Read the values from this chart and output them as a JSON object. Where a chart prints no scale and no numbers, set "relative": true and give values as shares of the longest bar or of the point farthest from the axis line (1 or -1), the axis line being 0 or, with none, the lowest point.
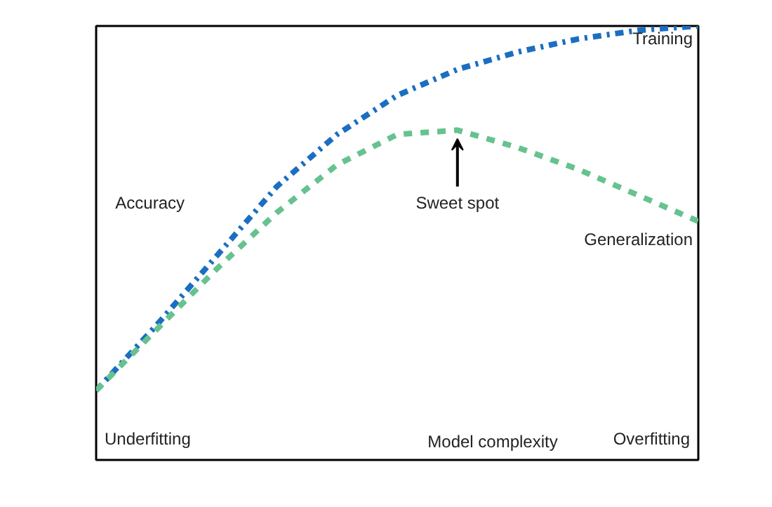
{
  "chart_data": {
    "type": "line",
    "relative": true,
    "xlabel": "Model complexity",
    "ylabel": "Accuracy",
    "categories": [
      null,
      null,
      null,
      null,
      null,
      null,
      null,
      null,
      null,
      null,
      null
    ],
    "series": [
      {
        "name": "Training",
        "color": "#1b6ec2",
        "line_style": "dashdot",
        "values": [
          0.16,
          0.31,
          0.47,
          0.63,
          0.75,
          0.84,
          0.9,
          0.94,
          0.97,
          0.99,
          1.0
        ]
      },
      {
        "name": "Generalization",
        "color": "#66c28f",
        "line_style": "dashed",
        "values": [
          0.16,
          0.3,
          0.44,
          0.57,
          0.68,
          0.75,
          0.76,
          0.72,
          0.67,
          0.61,
          0.55
        ]
      }
    ],
    "annotations": [
      "Sweet spot",
      "Underfitting",
      "Overfitting"
    ]
  }
}
